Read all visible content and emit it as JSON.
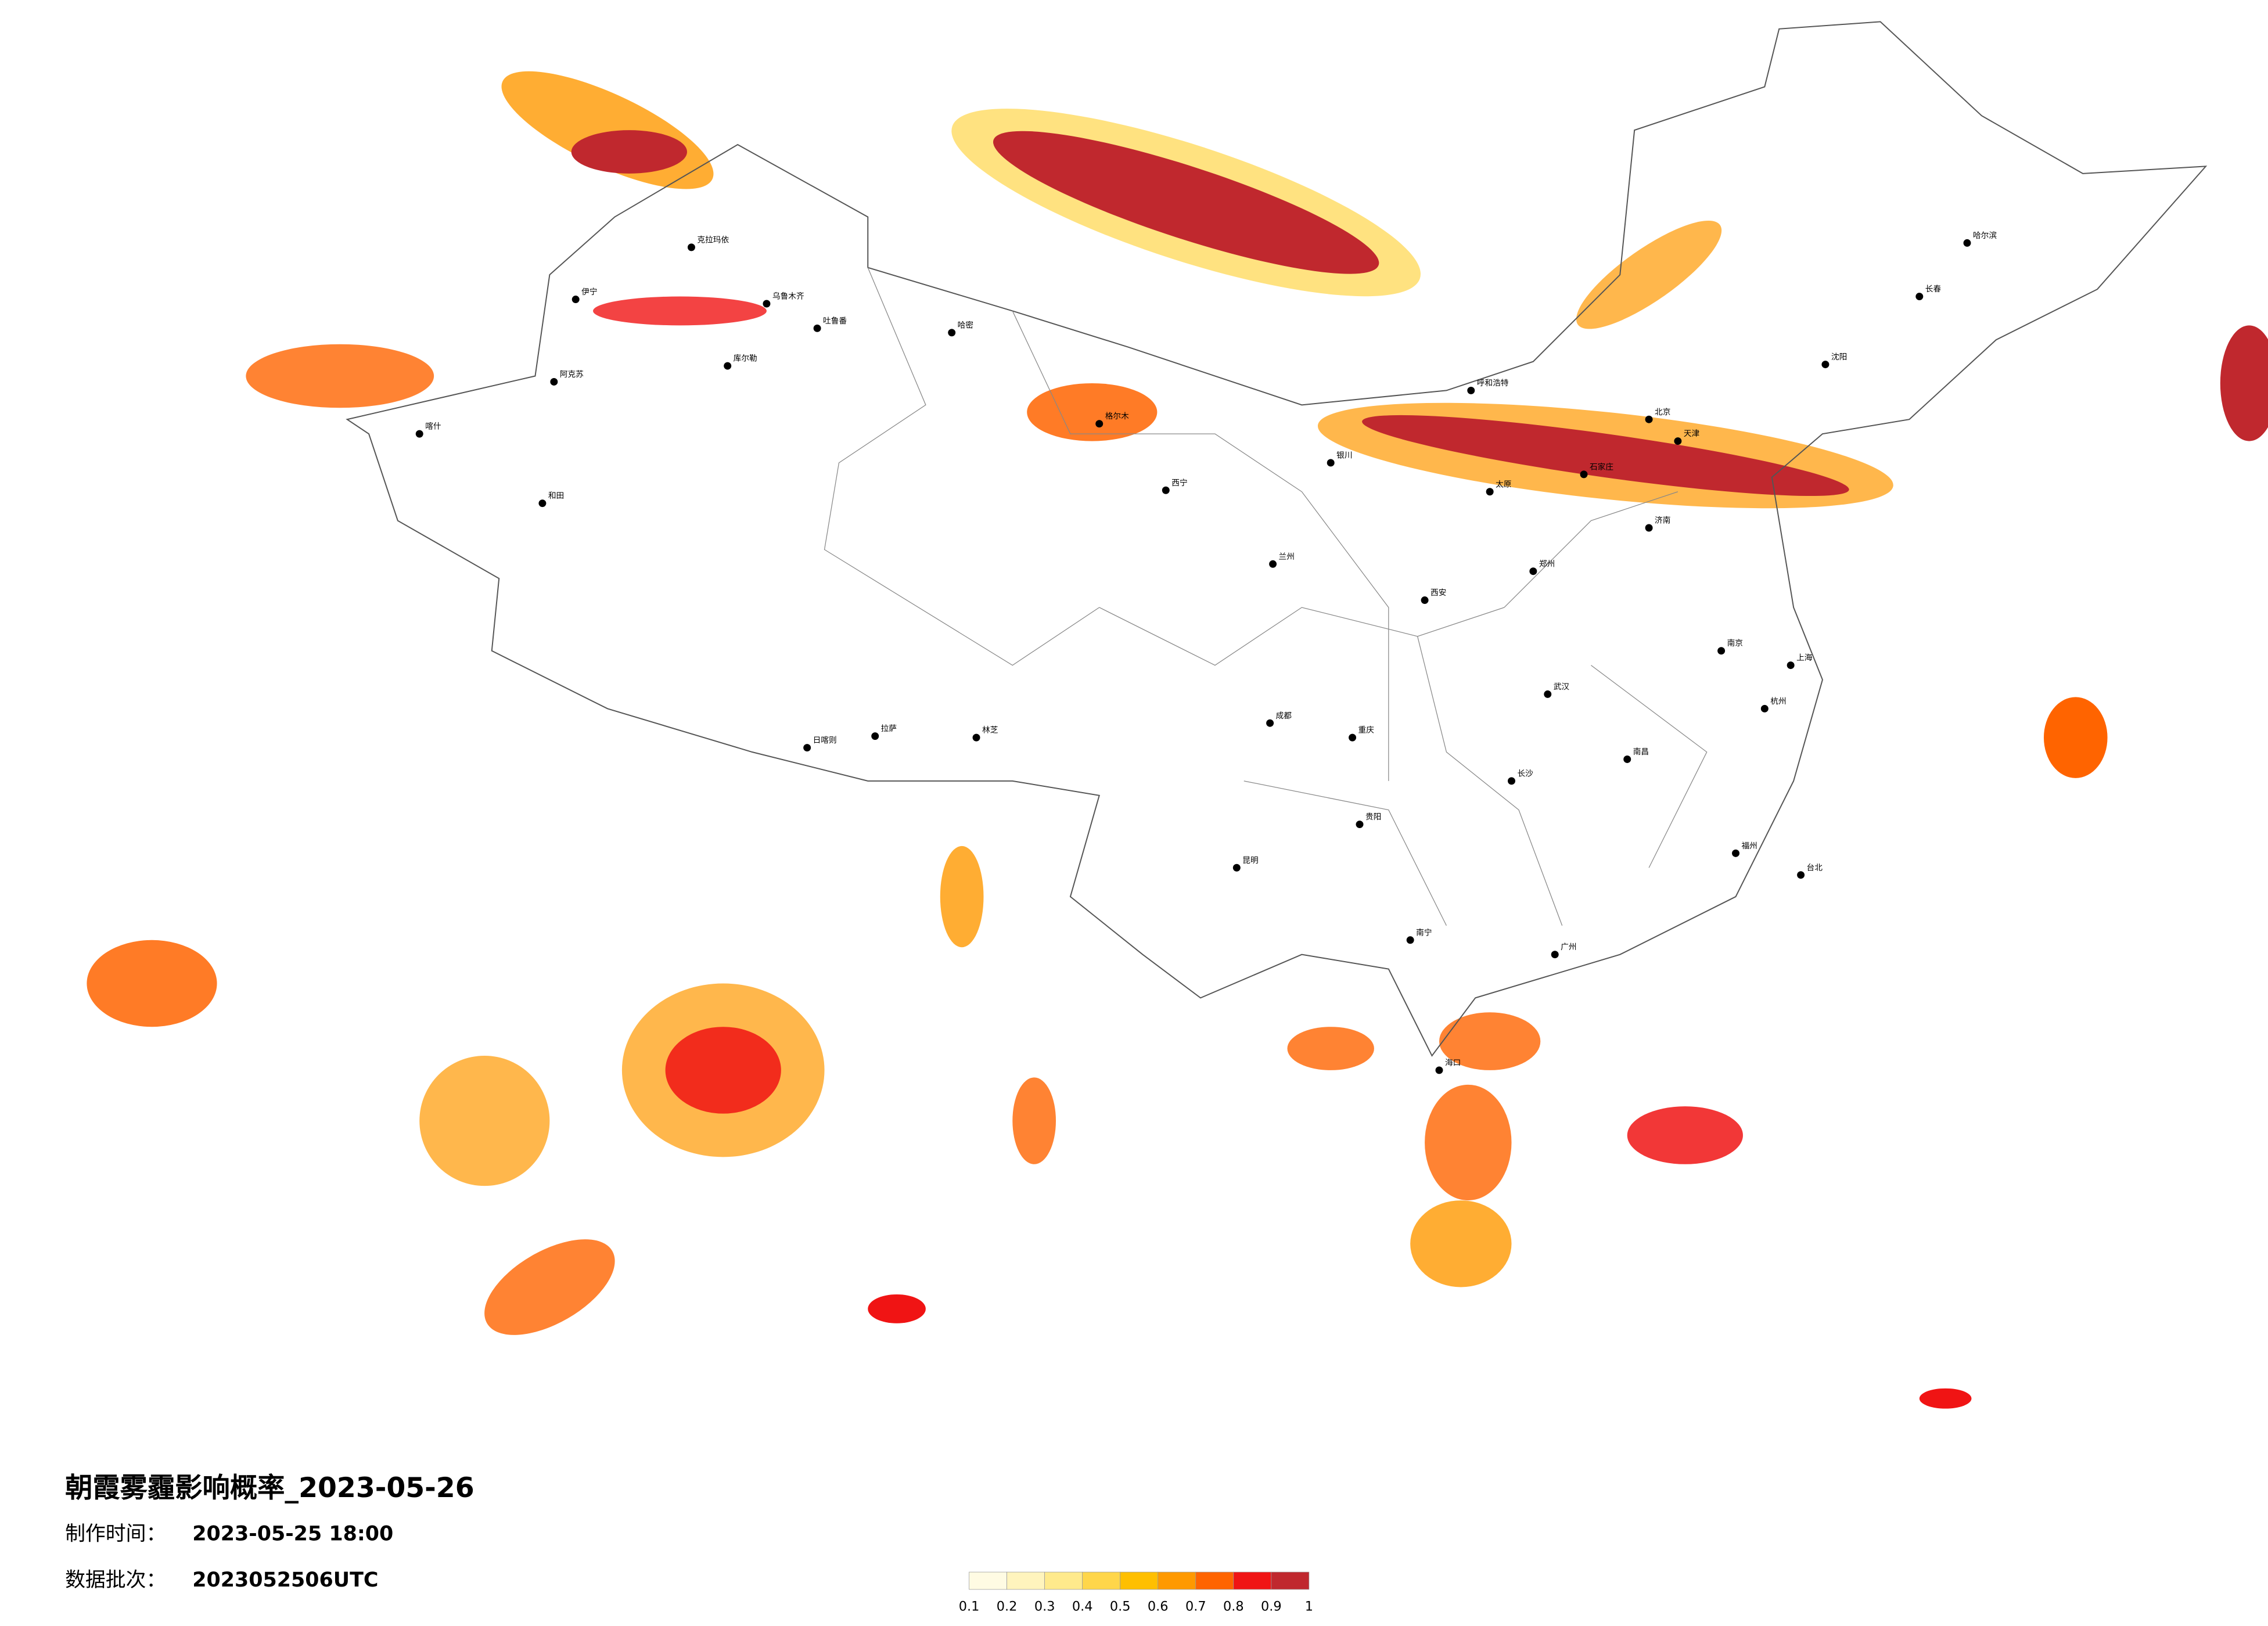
{
  "title": "朝霞雾霾影响概率_2023-05-26",
  "production_time": {
    "label": "制作时间：",
    "value": "2023-05-25 18:00"
  },
  "batch": {
    "label": "数据批次：",
    "value": "2023052506UTC"
  },
  "legend": {
    "colors": [
      "#fffbe3",
      "#fff4bd",
      "#ffea8c",
      "#ffd64a",
      "#ffbf00",
      "#ff9900",
      "#ff6400",
      "#f01414",
      "#c0282e"
    ],
    "ticks": [
      0.1,
      0.2,
      0.3,
      0.4,
      0.5,
      0.6,
      0.7,
      0.8,
      0.9,
      1
    ]
  },
  "cities": [
    "克拉玛依",
    "伊宁",
    "乌鲁木齐",
    "吐鲁番",
    "哈密",
    "阿克苏",
    "库尔勒",
    "喀什",
    "和田",
    "格尔木",
    "西宁",
    "拉萨",
    "日喀则",
    "林芝",
    "北京",
    "天津",
    "石家庄",
    "太原",
    "呼和浩特",
    "济南",
    "郑州",
    "南京",
    "上海",
    "杭州",
    "武汉",
    "长沙",
    "南昌",
    "福州",
    "广州",
    "南宁",
    "昆明",
    "贵阳",
    "成都",
    "重庆",
    "西安",
    "兰州",
    "银川",
    "哈尔滨",
    "长春",
    "沈阳",
    "台北",
    "海口"
  ]
}
